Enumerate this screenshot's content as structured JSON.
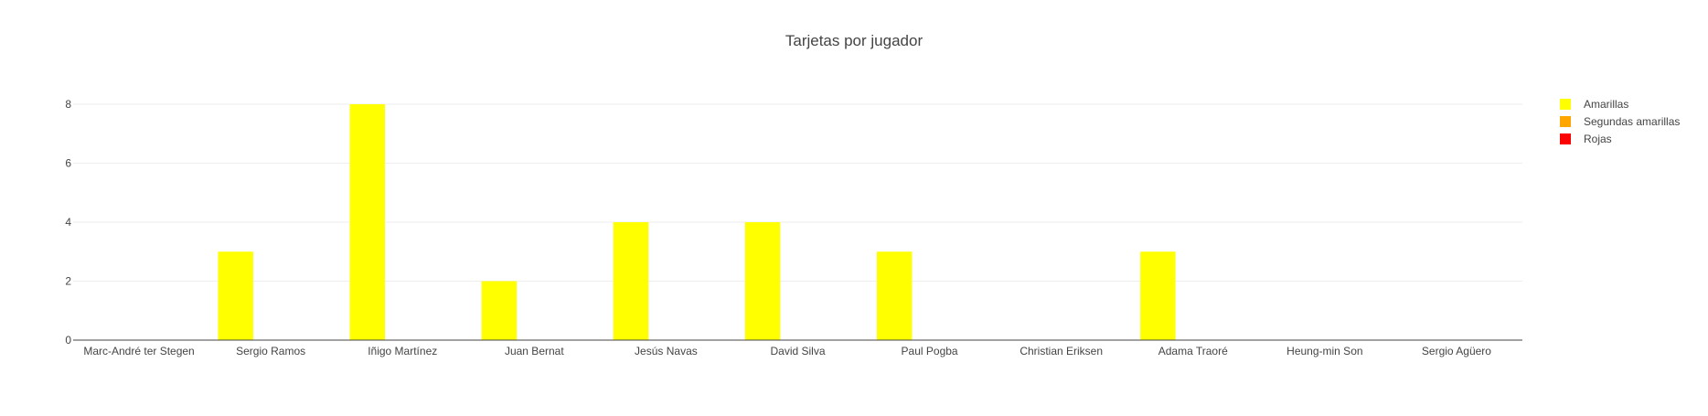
{
  "chart_data": {
    "type": "bar",
    "title": "Tarjetas por jugador",
    "xlabel": "",
    "ylabel": "",
    "categories": [
      "Marc-André ter Stegen",
      "Sergio Ramos",
      "Iñigo Martínez",
      "Juan Bernat",
      "Jesús Navas",
      "David Silva",
      "Paul Pogba",
      "Christian Eriksen",
      "Adama Traoré",
      "Heung-min Son",
      "Sergio Agüero"
    ],
    "series": [
      {
        "name": "Amarillas",
        "color": "#ffff00",
        "values": [
          0,
          3,
          8,
          2,
          4,
          4,
          3,
          0,
          3,
          0,
          0
        ]
      },
      {
        "name": "Segundas amarillas",
        "color": "#ffa500",
        "values": [
          0,
          0,
          0,
          0,
          0,
          0,
          0,
          0,
          0,
          0,
          0
        ]
      },
      {
        "name": "Rojas",
        "color": "#ff0000",
        "values": [
          0,
          0,
          0,
          0,
          0,
          0,
          0,
          0,
          0,
          0,
          0
        ]
      }
    ],
    "ylim": [
      0,
      8
    ],
    "yticks": [
      0,
      2,
      4,
      6,
      8
    ],
    "grid": true,
    "legend_position": "top-right"
  }
}
